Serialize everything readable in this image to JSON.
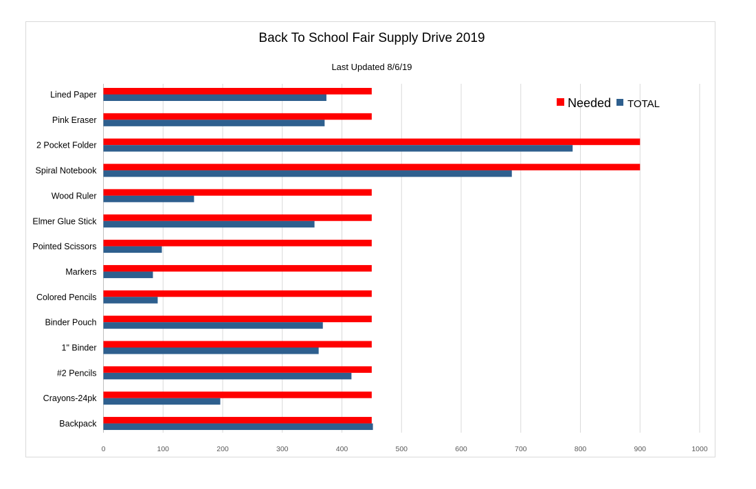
{
  "chart_data": {
    "type": "bar",
    "orientation": "horizontal",
    "title": "Back To School Fair Supply Drive 2019",
    "subtitle": "Last Updated 8/6/19",
    "xlabel": "",
    "ylabel": "",
    "xlim": [
      0,
      1000
    ],
    "xticks": [
      "0",
      "100",
      "200",
      "300",
      "400",
      "500",
      "600",
      "700",
      "800",
      "900",
      "1000"
    ],
    "grid": "vertical",
    "legend_position": "top-right",
    "categories": [
      "Lined Paper",
      "Pink Eraser",
      "2 Pocket Folder",
      "Spiral Notebook",
      "Wood Ruler",
      "Elmer Glue Stick",
      "Pointed Scissors",
      "Markers",
      "Colored Pencils",
      "Binder Pouch",
      "1\" Binder",
      "#2 Pencils",
      "Crayons-24pk",
      "Backpack"
    ],
    "series": [
      {
        "name": "Needed",
        "color": "#ff0000",
        "values": [
          450,
          450,
          900,
          900,
          450,
          450,
          450,
          450,
          450,
          450,
          450,
          450,
          450,
          450
        ]
      },
      {
        "name": "TOTAL",
        "color": "#2e5f8e",
        "values": [
          374,
          371,
          787,
          685,
          152,
          354,
          98,
          83,
          91,
          368,
          361,
          416,
          196,
          452
        ]
      }
    ]
  }
}
